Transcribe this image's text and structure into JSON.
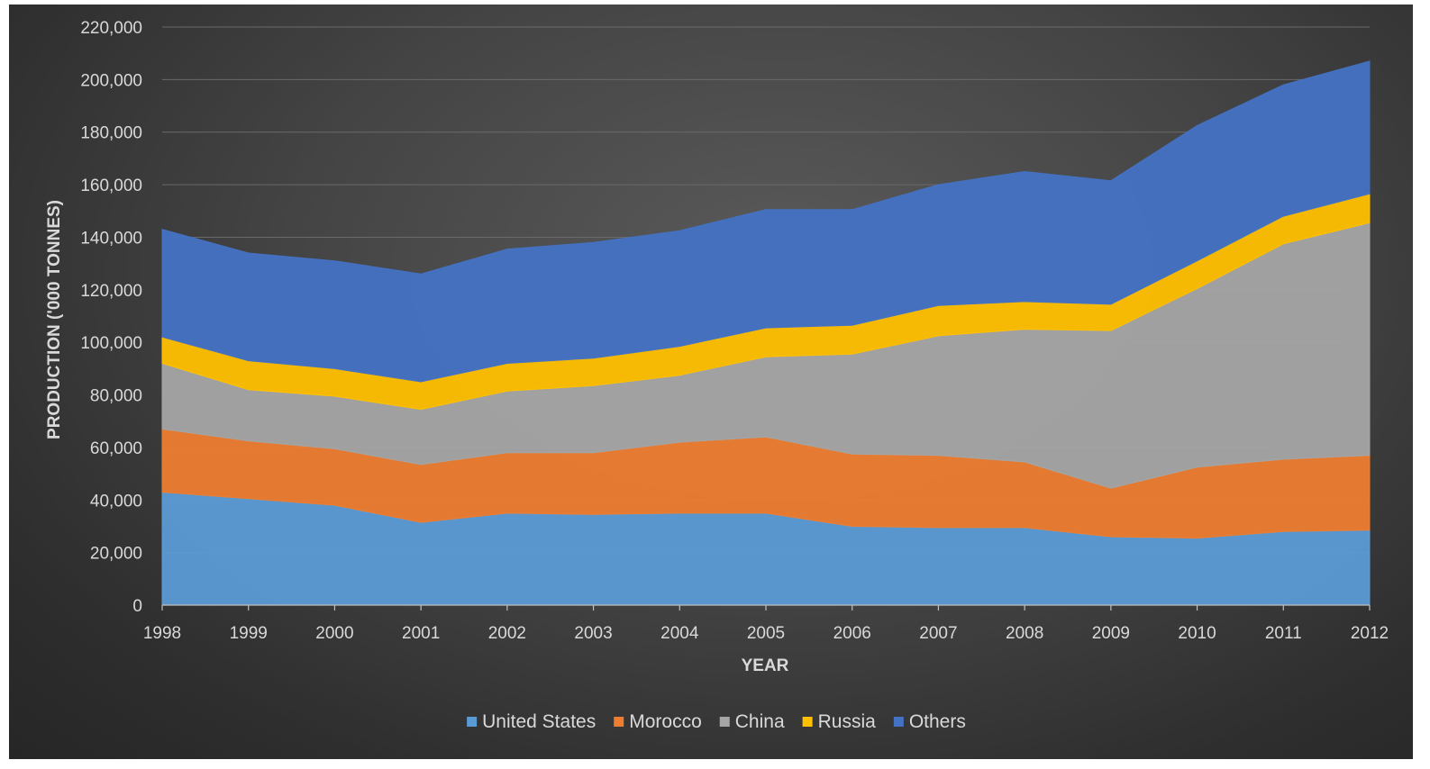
{
  "chart_data": {
    "type": "area",
    "stacked": true,
    "title": "",
    "xlabel": "YEAR",
    "ylabel": "PRODUCTION ('000 TONNES)",
    "ylim": [
      0,
      220000
    ],
    "yticks": [
      0,
      20000,
      40000,
      60000,
      80000,
      100000,
      120000,
      140000,
      160000,
      180000,
      200000,
      220000
    ],
    "ytick_labels": [
      "0",
      "20,000",
      "40,000",
      "60,000",
      "80,000",
      "100,000",
      "120,000",
      "140,000",
      "160,000",
      "180,000",
      "200,000",
      "220,000"
    ],
    "x": [
      "1998",
      "1999",
      "2000",
      "2001",
      "2002",
      "2003",
      "2004",
      "2005",
      "2006",
      "2007",
      "2008",
      "2009",
      "2010",
      "2011",
      "2012"
    ],
    "grid": true,
    "legend_position": "bottom",
    "series": [
      {
        "name": "United States",
        "color": "#5b9bd5",
        "values": [
          43000,
          40500,
          38000,
          31500,
          35000,
          34500,
          35000,
          35000,
          30000,
          29500,
          29500,
          26000,
          25500,
          28000,
          28500
        ]
      },
      {
        "name": "Morocco",
        "color": "#ed7d31",
        "values": [
          24000,
          22000,
          21500,
          22000,
          23000,
          23500,
          27000,
          29000,
          27500,
          27500,
          25000,
          18500,
          27000,
          27500,
          28500
        ]
      },
      {
        "name": "China",
        "color": "#a5a5a5",
        "values": [
          25000,
          19500,
          20000,
          21000,
          23500,
          25500,
          25500,
          30500,
          38000,
          45500,
          50500,
          60000,
          68000,
          82000,
          88500
        ]
      },
      {
        "name": "Russia",
        "color": "#ffc000",
        "values": [
          10000,
          11000,
          10500,
          10500,
          10500,
          10500,
          11000,
          11000,
          11000,
          11500,
          10500,
          10000,
          10500,
          10500,
          11000
        ]
      },
      {
        "name": "Others",
        "color": "#4472c4",
        "values": [
          41000,
          41000,
          41000,
          41000,
          43500,
          44000,
          44000,
          45000,
          44000,
          46000,
          49500,
          47000,
          51500,
          50000,
          50500
        ]
      }
    ]
  }
}
